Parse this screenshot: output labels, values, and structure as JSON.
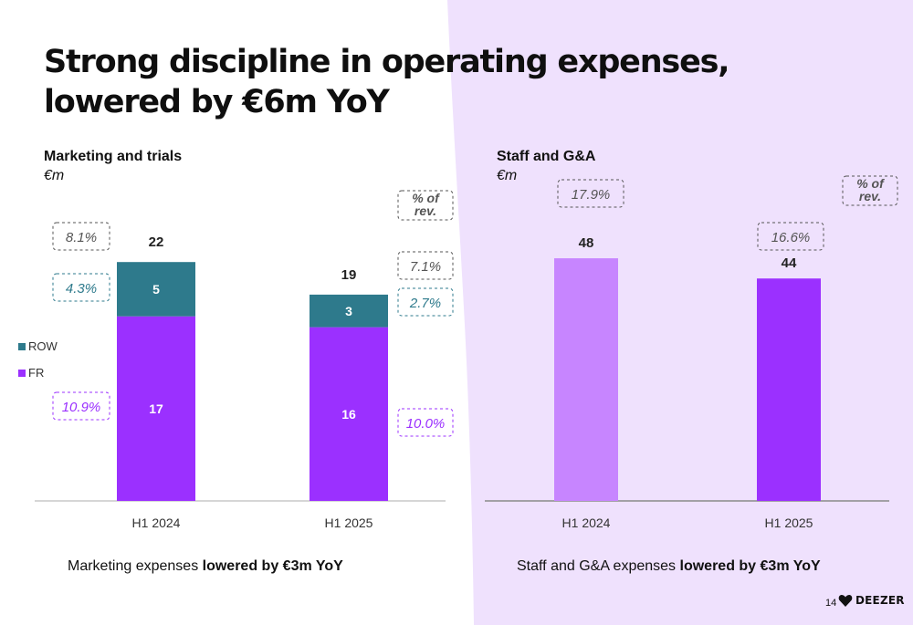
{
  "slide": {
    "title": "Strong discipline in operating expenses, lowered by €6m YoY",
    "page_number": "14",
    "brand": "DEEZER"
  },
  "colors": {
    "fr": "#9b30ff",
    "row": "#2e7a8c",
    "staff_h1_2024": "#c785ff",
    "staff_h1_2025": "#9b30ff",
    "right_panel_bg": "#efe1fd",
    "pct_grey": "#555555",
    "pct_teal": "#2e7a8c",
    "pct_purple": "#9b30ff"
  },
  "left_caption": {
    "prefix": "Marketing expenses ",
    "bold": "lowered by €3m YoY"
  },
  "right_caption": {
    "prefix": "Staff and G&A expenses ",
    "bold": "lowered by €3m YoY"
  },
  "chart_data": [
    {
      "type": "bar",
      "stacked": true,
      "title": "Marketing and trials",
      "unit": "€m",
      "categories": [
        "H1 2024",
        "H1 2025"
      ],
      "series": [
        {
          "name": "FR",
          "values": [
            17,
            16
          ]
        },
        {
          "name": "ROW",
          "values": [
            5,
            3
          ]
        }
      ],
      "totals": [
        22,
        19
      ],
      "legend": [
        "ROW",
        "FR"
      ],
      "legend_position": "left",
      "ylim": [
        0,
        24
      ],
      "grid": false,
      "pct_of_rev_label": "% of rev.",
      "pct_of_rev": {
        "total": [
          "8.1%",
          "7.1%"
        ],
        "ROW": [
          "4.3%",
          "2.7%"
        ],
        "FR": [
          "10.9%",
          "10.0%"
        ]
      }
    },
    {
      "type": "bar",
      "title": "Staff and G&A",
      "unit": "€m",
      "categories": [
        "H1 2024",
        "H1 2025"
      ],
      "values": [
        48,
        44
      ],
      "ylim": [
        0,
        50
      ],
      "grid": false,
      "pct_of_rev_label": "% of rev.",
      "pct_of_rev": [
        "17.9%",
        "16.6%"
      ]
    }
  ]
}
